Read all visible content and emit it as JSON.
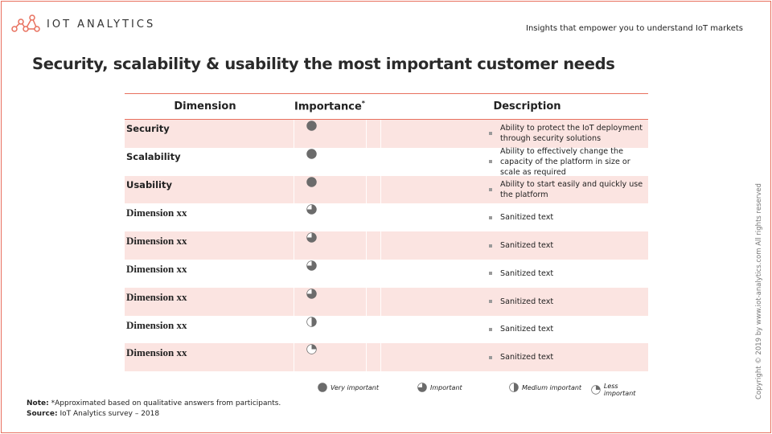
{
  "header": {
    "brand": "IOT ANALYTICS",
    "tagline": "Insights that empower you to understand IoT markets"
  },
  "title": "Security, scalability & usability the most important customer needs",
  "table": {
    "columns": {
      "dimension": "Dimension",
      "importance": "Importance",
      "importance_mark": "*",
      "description": "Description"
    },
    "rows": [
      {
        "dimension": "Security",
        "importance": 1.0,
        "description": "Ability to protect the IoT deployment through security solutions"
      },
      {
        "dimension": "Scalability",
        "importance": 1.0,
        "description": "Ability to effectively change the capacity of the platform in size or scale as required"
      },
      {
        "dimension": "Usability",
        "importance": 1.0,
        "description": "Ability to start easily and quickly use the platform"
      },
      {
        "dimension": "Dimension xx",
        "importance": 0.75,
        "description": "Sanitized text"
      },
      {
        "dimension": "Dimension xx",
        "importance": 0.75,
        "description": "Sanitized text"
      },
      {
        "dimension": "Dimension xx",
        "importance": 0.75,
        "description": "Sanitized text"
      },
      {
        "dimension": "Dimension xx",
        "importance": 0.75,
        "description": "Sanitized text"
      },
      {
        "dimension": "Dimension xx",
        "importance": 0.5,
        "description": "Sanitized text"
      },
      {
        "dimension": "Dimension xx",
        "importance": 0.25,
        "description": "Sanitized text"
      }
    ]
  },
  "legend": [
    {
      "label": "Very important",
      "level": 1.0
    },
    {
      "label": "Important",
      "level": 0.75
    },
    {
      "label": "Medium important",
      "level": 0.5
    },
    {
      "label": "Less important",
      "level": 0.25
    }
  ],
  "note": {
    "note_label": "Note:",
    "note_text": "*Approximated based on qualitative answers from participants.",
    "source_label": "Source:",
    "source_text": "IoT Analytics survey – 2018"
  },
  "copyright": "Copyright © 2019 by www.iot-analytics.com All rights reserved",
  "colors": {
    "accent": "#e8705e",
    "row_shade": "#fbe4e1",
    "harvey": "#6b6b6b"
  }
}
